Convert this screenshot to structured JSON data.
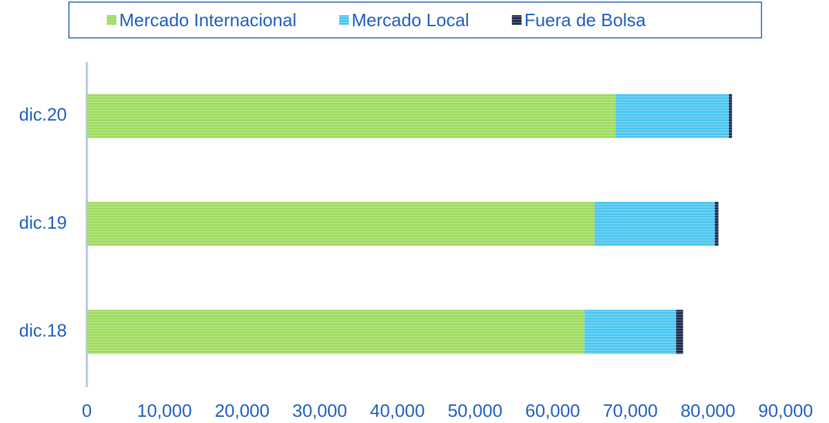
{
  "chart_data": {
    "type": "stacked-bar-horizontal",
    "categories": [
      "dic.20",
      "dic.19",
      "dic.18"
    ],
    "series": [
      {
        "name": "Mercado Internacional",
        "color": "#9fdc5f",
        "values": [
          68100,
          65400,
          64100
        ]
      },
      {
        "name": "Mercado Local",
        "color": "#4cc6f0",
        "values": [
          14600,
          15500,
          11800
        ]
      },
      {
        "name": "Fuera de Bolsa",
        "color": "#1e2b4d",
        "values": [
          400,
          450,
          900
        ]
      }
    ],
    "xlim": [
      0,
      90000
    ],
    "xticks": [
      0,
      {
        "value": 10000,
        "label": "10,000"
      },
      {
        "value": 20000,
        "label": "20,000"
      },
      {
        "value": 30000,
        "label": "30,000"
      },
      {
        "value": 40000,
        "label": "40,000"
      },
      {
        "value": 50000,
        "label": "50,000"
      },
      {
        "value": 60000,
        "label": "60,000"
      },
      {
        "value": 70000,
        "label": "70,000"
      },
      {
        "value": 80000,
        "label": "80,000"
      },
      {
        "value": 90000,
        "label": "90,000"
      }
    ],
    "legend": "top"
  }
}
